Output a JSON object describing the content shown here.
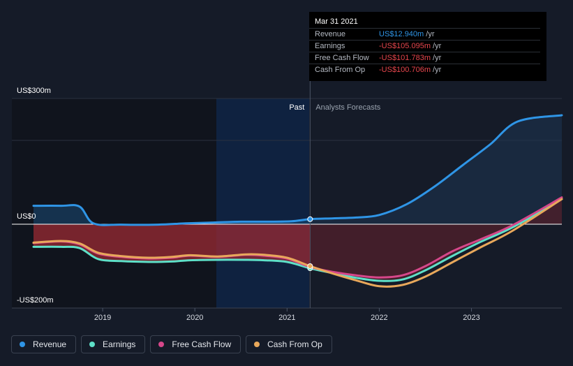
{
  "chart_data": {
    "type": "line",
    "title": "",
    "xlabel": "",
    "ylabel": "",
    "x_ticks": [
      "2019",
      "2020",
      "2021",
      "2022",
      "2023"
    ],
    "y_ticks": [
      {
        "value": 300,
        "label": "US$300m"
      },
      {
        "value": 0,
        "label": "US$0"
      },
      {
        "value": -200,
        "label": "-US$200m"
      }
    ],
    "ylim": [
      -200,
      300
    ],
    "xlim": [
      2018.25,
      2023.98
    ],
    "past_label": "Past",
    "forecast_label": "Analysts Forecasts",
    "divider_x": 2021.25,
    "series": [
      {
        "name": "Revenue",
        "color": "#2f95e6",
        "x": [
          2018.25,
          2018.55,
          2018.75,
          2018.9,
          2019.2,
          2019.6,
          2019.9,
          2020.2,
          2020.5,
          2020.8,
          2021.05,
          2021.25,
          2021.5,
          2021.75,
          2022.0,
          2022.3,
          2022.6,
          2022.9,
          2023.2,
          2023.5,
          2023.98
        ],
        "y": [
          44,
          44,
          42,
          2,
          -1,
          -1,
          2,
          4,
          6,
          6,
          7,
          12,
          14,
          16,
          22,
          48,
          90,
          140,
          190,
          245,
          260
        ]
      },
      {
        "name": "Earnings",
        "color": "#5ee0c8",
        "x": [
          2018.25,
          2018.55,
          2018.75,
          2018.95,
          2019.2,
          2019.5,
          2019.75,
          2019.95,
          2020.25,
          2020.55,
          2020.75,
          2021.0,
          2021.25,
          2021.5,
          2021.75,
          2022.0,
          2022.25,
          2022.5,
          2022.8,
          2023.1,
          2023.45,
          2023.98
        ],
        "y": [
          -54,
          -54,
          -57,
          -83,
          -88,
          -90,
          -89,
          -86,
          -85,
          -85,
          -86,
          -90,
          -105,
          -117,
          -128,
          -135,
          -132,
          -110,
          -75,
          -42,
          -7,
          60
        ]
      },
      {
        "name": "Free Cash Flow",
        "color": "#d6478a",
        "x": [
          2018.25,
          2018.55,
          2018.75,
          2018.95,
          2019.2,
          2019.5,
          2019.75,
          2019.95,
          2020.25,
          2020.55,
          2020.75,
          2021.0,
          2021.25,
          2021.5,
          2021.75,
          2022.0,
          2022.25,
          2022.5,
          2022.8,
          2023.1,
          2023.45,
          2023.98
        ],
        "y": [
          -45,
          -41,
          -48,
          -70,
          -78,
          -82,
          -80,
          -75,
          -78,
          -73,
          -75,
          -82,
          -102,
          -114,
          -122,
          -127,
          -122,
          -100,
          -64,
          -36,
          -2,
          64
        ]
      },
      {
        "name": "Cash From Op",
        "color": "#e8a85b",
        "x": [
          2018.25,
          2018.55,
          2018.75,
          2018.95,
          2019.2,
          2019.5,
          2019.75,
          2019.95,
          2020.25,
          2020.55,
          2020.75,
          2021.0,
          2021.25,
          2021.5,
          2021.75,
          2022.0,
          2022.25,
          2022.5,
          2022.8,
          2023.1,
          2023.45,
          2023.98
        ],
        "y": [
          -44,
          -40,
          -46,
          -68,
          -76,
          -80,
          -78,
          -74,
          -77,
          -72,
          -73,
          -80,
          -100,
          -118,
          -134,
          -148,
          -145,
          -125,
          -90,
          -55,
          -15,
          60
        ]
      }
    ],
    "legend": [
      "Revenue",
      "Earnings",
      "Free Cash Flow",
      "Cash From Op"
    ]
  },
  "tooltip": {
    "date": "Mar 31 2021",
    "rows": [
      {
        "name": "Revenue",
        "value": "US$12.940m",
        "unit": " /yr",
        "color": "#2f95e6"
      },
      {
        "name": "Earnings",
        "value": "-US$105.095m",
        "unit": " /yr",
        "color": "#e8464d"
      },
      {
        "name": "Free Cash Flow",
        "value": "-US$101.783m",
        "unit": " /yr",
        "color": "#e8464d"
      },
      {
        "name": "Cash From Op",
        "value": "-US$100.706m",
        "unit": " /yr",
        "color": "#e8464d"
      }
    ]
  },
  "legend": [
    {
      "label": "Revenue",
      "color": "#2f95e6"
    },
    {
      "label": "Earnings",
      "color": "#5ee0c8"
    },
    {
      "label": "Free Cash Flow",
      "color": "#d6478a"
    },
    {
      "label": "Cash From Op",
      "color": "#e8a85b"
    }
  ]
}
